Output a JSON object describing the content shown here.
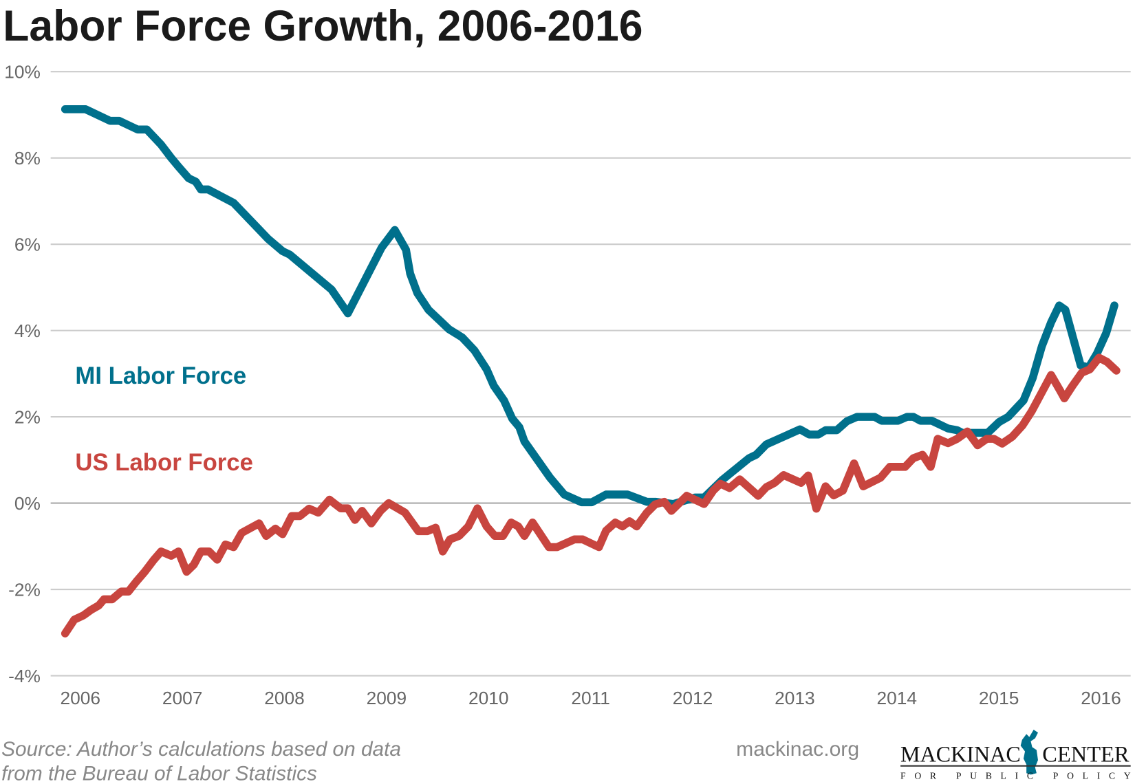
{
  "chart_data": {
    "type": "line",
    "title": "Labor Force Growth, 2006-2016",
    "xlabel": "",
    "ylabel": "",
    "xlim": [
      2006,
      2016.3
    ],
    "ylim": [
      -4,
      10
    ],
    "grid": true,
    "y_ticks": [
      10,
      8,
      6,
      4,
      2,
      0,
      -2,
      -4
    ],
    "y_tick_labels": [
      "10%",
      "8%",
      "6%",
      "4%",
      "2%",
      "0%",
      "-2%",
      "-4%"
    ],
    "x_ticks": [
      2006,
      2007,
      2008,
      2009,
      2010,
      2011,
      2012,
      2013,
      2014,
      2015,
      2016
    ],
    "x_tick_labels": [
      "2006",
      "2007",
      "2008",
      "2009",
      "2010",
      "2011",
      "2012",
      "2013",
      "2014",
      "2015",
      "2016"
    ],
    "series": [
      {
        "name": "MI Labor Force",
        "color": "#00708c",
        "points": [
          [
            2006.0,
            9.13
          ],
          [
            2006.2,
            9.13
          ],
          [
            2006.44,
            8.86
          ],
          [
            2006.53,
            8.86
          ],
          [
            2006.71,
            8.66
          ],
          [
            2006.8,
            8.66
          ],
          [
            2006.94,
            8.31
          ],
          [
            2007.04,
            8.0
          ],
          [
            2007.11,
            7.8
          ],
          [
            2007.21,
            7.53
          ],
          [
            2007.28,
            7.45
          ],
          [
            2007.33,
            7.27
          ],
          [
            2007.4,
            7.27
          ],
          [
            2007.65,
            6.96
          ],
          [
            2007.99,
            6.12
          ],
          [
            2008.13,
            5.84
          ],
          [
            2008.2,
            5.76
          ],
          [
            2008.61,
            4.95
          ],
          [
            2008.77,
            4.4
          ],
          [
            2009.1,
            5.92
          ],
          [
            2009.23,
            6.33
          ],
          [
            2009.34,
            5.87
          ],
          [
            2009.38,
            5.32
          ],
          [
            2009.45,
            4.87
          ],
          [
            2009.56,
            4.48
          ],
          [
            2009.69,
            4.19
          ],
          [
            2009.76,
            4.03
          ],
          [
            2009.89,
            3.84
          ],
          [
            2010.01,
            3.54
          ],
          [
            2010.13,
            3.1
          ],
          [
            2010.2,
            2.72
          ],
          [
            2010.3,
            2.38
          ],
          [
            2010.38,
            1.96
          ],
          [
            2010.45,
            1.76
          ],
          [
            2010.5,
            1.43
          ],
          [
            2010.75,
            0.59
          ],
          [
            2010.89,
            0.2
          ],
          [
            2011.06,
            0.02
          ],
          [
            2011.16,
            0.02
          ],
          [
            2011.3,
            0.2
          ],
          [
            2011.51,
            0.2
          ],
          [
            2011.7,
            0.03
          ],
          [
            2011.79,
            0.03
          ],
          [
            2011.96,
            -0.02
          ],
          [
            2012.17,
            0.13
          ],
          [
            2012.26,
            0.13
          ],
          [
            2012.44,
            0.54
          ],
          [
            2012.7,
            1.04
          ],
          [
            2012.77,
            1.12
          ],
          [
            2012.87,
            1.36
          ],
          [
            2013.2,
            1.71
          ],
          [
            2013.29,
            1.59
          ],
          [
            2013.38,
            1.59
          ],
          [
            2013.45,
            1.69
          ],
          [
            2013.56,
            1.69
          ],
          [
            2013.66,
            1.9
          ],
          [
            2013.76,
            2.0
          ],
          [
            2013.93,
            2.0
          ],
          [
            2014.0,
            1.91
          ],
          [
            2014.16,
            1.91
          ],
          [
            2014.25,
            2.0
          ],
          [
            2014.31,
            2.0
          ],
          [
            2014.38,
            1.91
          ],
          [
            2014.49,
            1.91
          ],
          [
            2014.65,
            1.73
          ],
          [
            2014.74,
            1.69
          ],
          [
            2014.79,
            1.63
          ],
          [
            2015.04,
            1.63
          ],
          [
            2015.15,
            1.88
          ],
          [
            2015.24,
            2.0
          ],
          [
            2015.39,
            2.38
          ],
          [
            2015.48,
            2.9
          ],
          [
            2015.57,
            3.64
          ],
          [
            2015.66,
            4.19
          ],
          [
            2015.74,
            4.58
          ],
          [
            2015.8,
            4.48
          ],
          [
            2015.95,
            3.19
          ],
          [
            2016.03,
            3.15
          ],
          [
            2016.11,
            3.47
          ],
          [
            2016.2,
            3.94
          ],
          [
            2016.28,
            4.58
          ]
        ]
      },
      {
        "name": "US Labor Force",
        "color": "#c8453f",
        "points": [
          [
            2006.0,
            -3.02
          ],
          [
            2006.09,
            -2.7
          ],
          [
            2006.18,
            -2.6
          ],
          [
            2006.25,
            -2.48
          ],
          [
            2006.33,
            -2.37
          ],
          [
            2006.38,
            -2.23
          ],
          [
            2006.46,
            -2.23
          ],
          [
            2006.55,
            -2.05
          ],
          [
            2006.62,
            -2.05
          ],
          [
            2006.7,
            -1.81
          ],
          [
            2006.78,
            -1.59
          ],
          [
            2006.87,
            -1.31
          ],
          [
            2006.94,
            -1.12
          ],
          [
            2007.04,
            -1.22
          ],
          [
            2007.11,
            -1.12
          ],
          [
            2007.19,
            -1.59
          ],
          [
            2007.26,
            -1.43
          ],
          [
            2007.33,
            -1.12
          ],
          [
            2007.41,
            -1.12
          ],
          [
            2007.49,
            -1.31
          ],
          [
            2007.57,
            -0.96
          ],
          [
            2007.65,
            -1.02
          ],
          [
            2007.73,
            -0.69
          ],
          [
            2007.9,
            -0.47
          ],
          [
            2007.97,
            -0.76
          ],
          [
            2008.06,
            -0.59
          ],
          [
            2008.13,
            -0.72
          ],
          [
            2008.22,
            -0.3
          ],
          [
            2008.3,
            -0.3
          ],
          [
            2008.39,
            -0.13
          ],
          [
            2008.48,
            -0.22
          ],
          [
            2008.59,
            0.08
          ],
          [
            2008.7,
            -0.12
          ],
          [
            2008.77,
            -0.12
          ],
          [
            2008.84,
            -0.39
          ],
          [
            2008.91,
            -0.18
          ],
          [
            2009.0,
            -0.47
          ],
          [
            2009.09,
            -0.18
          ],
          [
            2009.17,
            0.0
          ],
          [
            2009.33,
            -0.22
          ],
          [
            2009.46,
            -0.65
          ],
          [
            2009.55,
            -0.65
          ],
          [
            2009.63,
            -0.57
          ],
          [
            2009.7,
            -1.12
          ],
          [
            2009.77,
            -0.84
          ],
          [
            2009.86,
            -0.76
          ],
          [
            2009.95,
            -0.54
          ],
          [
            2010.04,
            -0.12
          ],
          [
            2010.13,
            -0.54
          ],
          [
            2010.21,
            -0.76
          ],
          [
            2010.29,
            -0.76
          ],
          [
            2010.37,
            -0.45
          ],
          [
            2010.44,
            -0.54
          ],
          [
            2010.5,
            -0.76
          ],
          [
            2010.58,
            -0.45
          ],
          [
            2010.74,
            -1.02
          ],
          [
            2010.82,
            -1.02
          ],
          [
            2010.99,
            -0.84
          ],
          [
            2011.07,
            -0.84
          ],
          [
            2011.23,
            -1.02
          ],
          [
            2011.3,
            -0.64
          ],
          [
            2011.39,
            -0.45
          ],
          [
            2011.46,
            -0.54
          ],
          [
            2011.53,
            -0.42
          ],
          [
            2011.6,
            -0.54
          ],
          [
            2011.7,
            -0.22
          ],
          [
            2011.78,
            -0.03
          ],
          [
            2011.87,
            0.03
          ],
          [
            2011.94,
            -0.18
          ],
          [
            2012.09,
            0.17
          ],
          [
            2012.26,
            -0.02
          ],
          [
            2012.35,
            0.29
          ],
          [
            2012.42,
            0.45
          ],
          [
            2012.51,
            0.35
          ],
          [
            2012.61,
            0.55
          ],
          [
            2012.79,
            0.17
          ],
          [
            2012.87,
            0.37
          ],
          [
            2012.95,
            0.47
          ],
          [
            2013.04,
            0.65
          ],
          [
            2013.21,
            0.47
          ],
          [
            2013.28,
            0.64
          ],
          [
            2013.36,
            -0.13
          ],
          [
            2013.45,
            0.39
          ],
          [
            2013.53,
            0.18
          ],
          [
            2013.62,
            0.29
          ],
          [
            2013.73,
            0.92
          ],
          [
            2013.82,
            0.39
          ],
          [
            2013.99,
            0.59
          ],
          [
            2014.08,
            0.84
          ],
          [
            2014.23,
            0.84
          ],
          [
            2014.31,
            1.04
          ],
          [
            2014.4,
            1.12
          ],
          [
            2014.48,
            0.84
          ],
          [
            2014.55,
            1.49
          ],
          [
            2014.65,
            1.39
          ],
          [
            2014.74,
            1.49
          ],
          [
            2014.84,
            1.66
          ],
          [
            2014.94,
            1.34
          ],
          [
            2015.03,
            1.49
          ],
          [
            2015.1,
            1.49
          ],
          [
            2015.18,
            1.38
          ],
          [
            2015.28,
            1.54
          ],
          [
            2015.38,
            1.8
          ],
          [
            2015.47,
            2.13
          ],
          [
            2015.57,
            2.57
          ],
          [
            2015.66,
            2.97
          ],
          [
            2015.75,
            2.6
          ],
          [
            2015.79,
            2.43
          ],
          [
            2015.87,
            2.72
          ],
          [
            2015.96,
            3.02
          ],
          [
            2016.04,
            3.1
          ],
          [
            2016.13,
            3.37
          ],
          [
            2016.21,
            3.27
          ],
          [
            2016.3,
            3.07
          ]
        ]
      }
    ]
  },
  "footer": {
    "source_line1": "Source: Author’s calculations based on data",
    "source_line2": "from the Bureau of Labor Statistics",
    "website": "mackinac.org",
    "logo_text": "MACKINAC CENTER FOR PUBLIC POLICY"
  }
}
